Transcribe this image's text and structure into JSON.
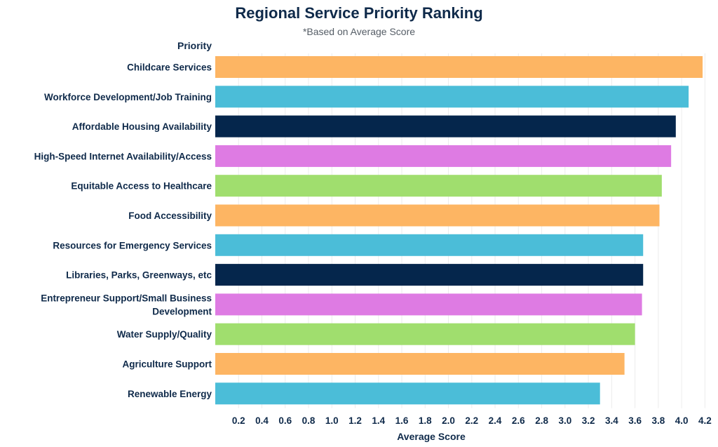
{
  "chart_data": {
    "type": "bar",
    "orientation": "horizontal",
    "title": "Regional Service Priority Ranking",
    "subtitle": "*Based on Average Score",
    "category_header": "Priority",
    "xlabel": "Average Score",
    "xlim": [
      0,
      4.3
    ],
    "xticks": [
      "0.2",
      "0.4",
      "0.6",
      "0.8",
      "1.0",
      "1.2",
      "1.4",
      "1.6",
      "1.8",
      "2.0",
      "2.2",
      "2.4",
      "2.6",
      "2.8",
      "3.0",
      "3.2",
      "3.4",
      "3.6",
      "3.8",
      "4.0",
      "4.2"
    ],
    "grid": true,
    "categories": [
      [
        "Childcare Services"
      ],
      [
        "Workforce Development/Job Training"
      ],
      [
        "Affordable Housing Availability"
      ],
      [
        "High-Speed Internet Availability/Access"
      ],
      [
        "Equitable Access to Healthcare"
      ],
      [
        "Food Accessibility"
      ],
      [
        "Resources for Emergency Services"
      ],
      [
        "Libraries, Parks, Greenways, etc"
      ],
      [
        "Entrepreneur Support/Small Business",
        "Development"
      ],
      [
        "Water Supply/Quality"
      ],
      [
        "Agriculture Support"
      ],
      [
        "Renewable Energy"
      ]
    ],
    "values": [
      4.18,
      4.06,
      3.95,
      3.91,
      3.83,
      3.81,
      3.67,
      3.67,
      3.66,
      3.6,
      3.51,
      3.3
    ],
    "colors": [
      "#fdb563",
      "#4bbdd8",
      "#05264c",
      "#de7be3",
      "#a0de6e",
      "#fdb563",
      "#4bbdd8",
      "#05264c",
      "#de7be3",
      "#a0de6e",
      "#fdb563",
      "#4bbdd8"
    ]
  }
}
